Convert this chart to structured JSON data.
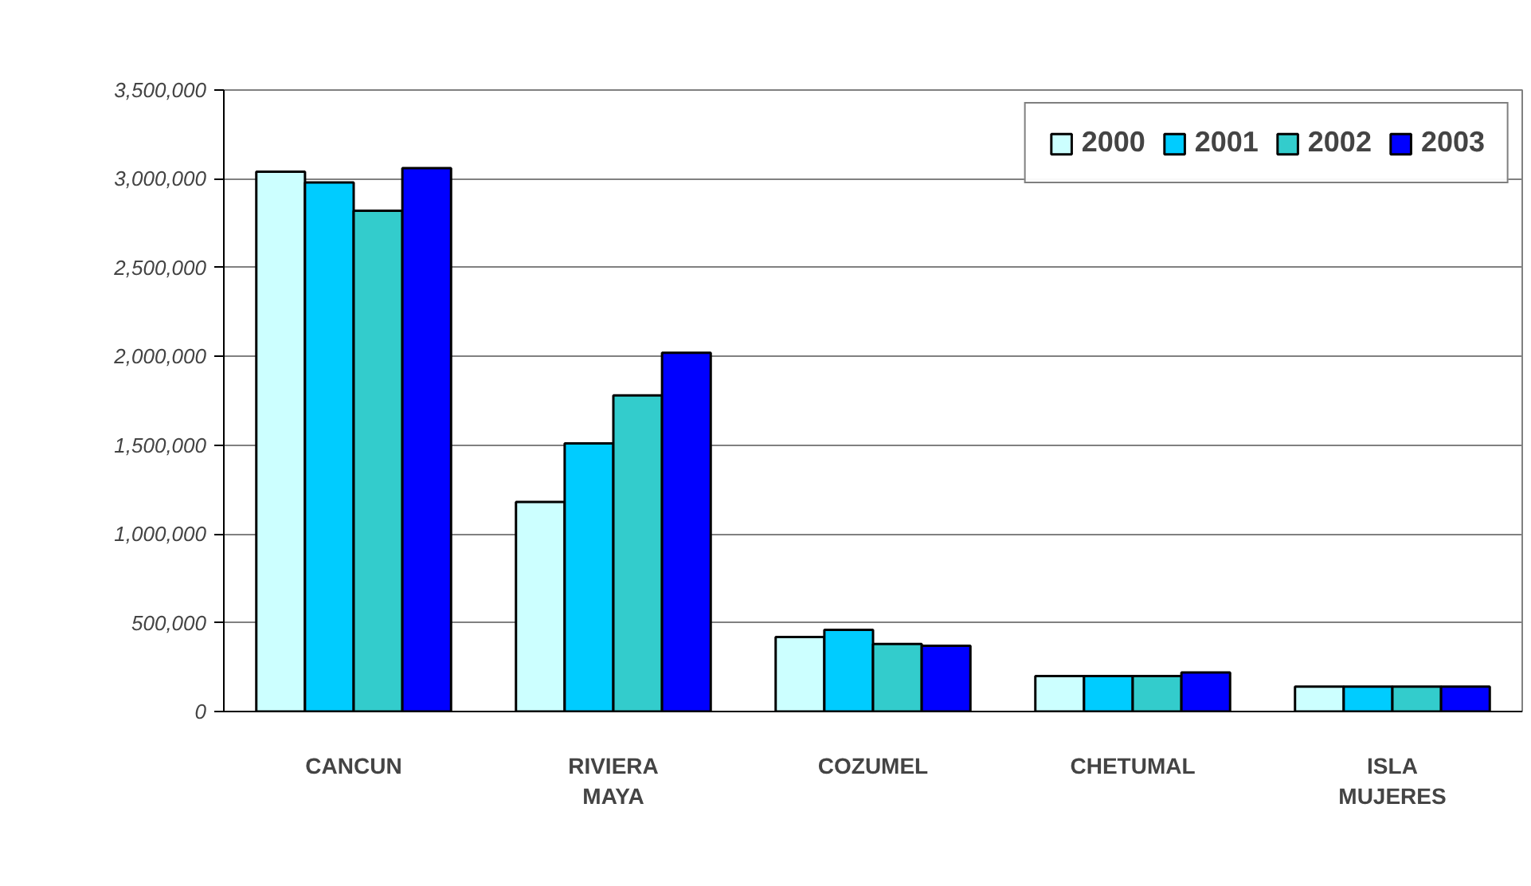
{
  "chart_data": {
    "type": "bar",
    "categories": [
      "CANCUN",
      "RIVIERA MAYA",
      "COZUMEL",
      "CHETUMAL",
      "ISLA MUJERES"
    ],
    "series": [
      {
        "name": "2000",
        "color": "#ccffff",
        "values": [
          3040000,
          1180000,
          420000,
          200000,
          140000
        ]
      },
      {
        "name": "2001",
        "color": "#00ccff",
        "values": [
          2980000,
          1510000,
          460000,
          200000,
          140000
        ]
      },
      {
        "name": "2002",
        "color": "#33cccc",
        "values": [
          2820000,
          1780000,
          380000,
          200000,
          140000
        ]
      },
      {
        "name": "2003",
        "color": "#0000ff",
        "values": [
          3060000,
          2020000,
          370000,
          220000,
          140000
        ]
      }
    ],
    "ylim": [
      0,
      3500000
    ],
    "yticks": [
      {
        "value": 0,
        "label": "0"
      },
      {
        "value": 500000,
        "label": "500,000"
      },
      {
        "value": 1000000,
        "label": "1,000,000"
      },
      {
        "value": 1500000,
        "label": "1,500,000"
      },
      {
        "value": 2000000,
        "label": "2,000,000"
      },
      {
        "value": 2500000,
        "label": "2,500,000"
      },
      {
        "value": 3000000,
        "label": "3,000,000"
      },
      {
        "value": 3500000,
        "label": "3,500,000"
      }
    ],
    "grid": "y",
    "legend": "top right"
  }
}
